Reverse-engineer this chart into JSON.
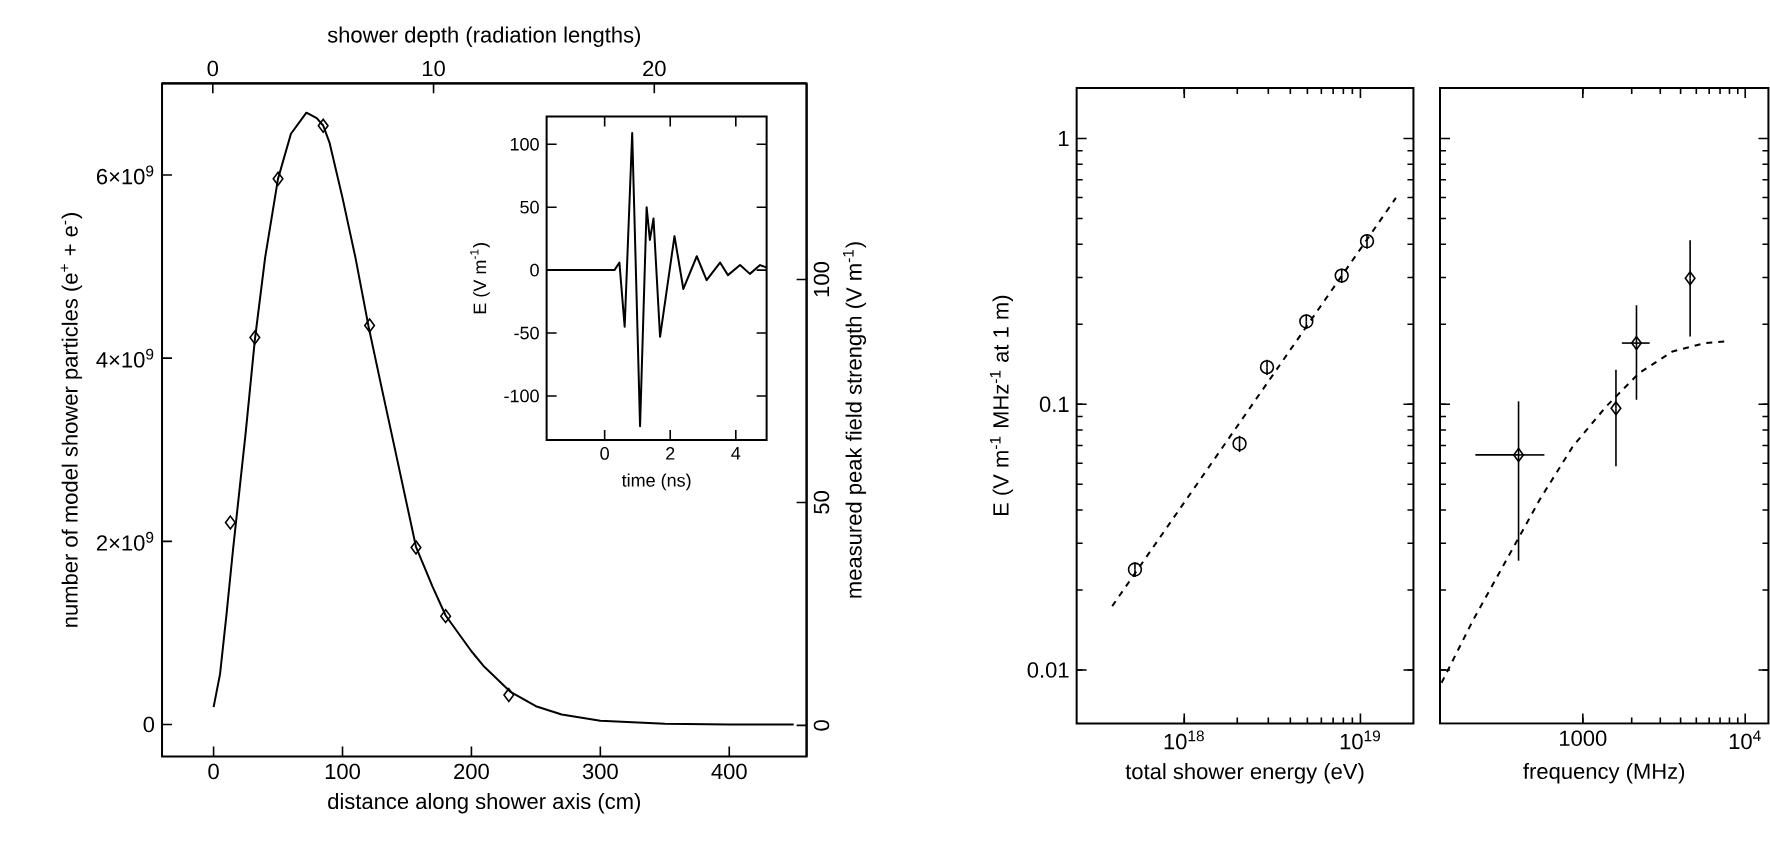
{
  "chart_data": [
    {
      "type": "line",
      "xlabel": "distance along shower axis (cm)",
      "ylabel": "number of model shower particles (e$^{+}$ + e$^{-}$)",
      "y2label": "measured peak field strength (V m$^{-1}$)",
      "x2label": "shower depth (radiation lengths)",
      "xlim": [
        -40,
        460
      ],
      "xticks": [
        0,
        100,
        200,
        300,
        400
      ],
      "ylim": [
        -350000000,
        7000000000
      ],
      "yticks": [
        0,
        {
          "value": 2000000000,
          "label": "2×10$^{9}$"
        },
        {
          "value": 4000000000,
          "label": "4×10$^{9}$"
        },
        {
          "value": 6000000000,
          "label": "6×10$^{9}$"
        }
      ],
      "y2lim": [
        -7,
        144
      ],
      "y2ticks": [
        0,
        50,
        100
      ],
      "x2lim": [
        -2.3,
        26.9
      ],
      "x2ticks": [
        0,
        10,
        20
      ],
      "series": [
        {
          "type": "line",
          "color": "#000000",
          "line_style": "solid",
          "marker": "none",
          "x": [
            0,
            5,
            10,
            15,
            20,
            25,
            32,
            40,
            50,
            60,
            72,
            80,
            85,
            90,
            100,
            110,
            120,
            130,
            140,
            157,
            170,
            180,
            200,
            210,
            230,
            250,
            270,
            300,
            350,
            400,
            450
          ],
          "values": [
            190000000,
            550000000,
            1200000000,
            1900000000,
            2550000000,
            3200000000,
            4200000000,
            5100000000,
            5960000000,
            6450000000,
            6680000000,
            6620000000,
            6540000000,
            6350000000,
            5750000000,
            5100000000,
            4360000000,
            3700000000,
            3050000000,
            1940000000,
            1500000000,
            1190000000,
            800000000,
            630000000,
            360000000,
            200000000,
            110000000,
            40000000,
            8000000,
            1000000,
            0
          ]
        },
        {
          "type": "scatter",
          "axis": "y2",
          "color": "#000000",
          "marker": "diamond",
          "x": [
            13,
            32,
            50,
            85,
            121,
            157,
            180,
            229
          ],
          "values": [
            45.5,
            87,
            122.6,
            134.5,
            89.7,
            39.9,
            24.5,
            6.8
          ]
        }
      ]
    },
    {
      "type": "line",
      "xlabel": "time (ns)",
      "ylabel": "E (V m$^{-1}$)",
      "xlim": [
        -1.77,
        4.94
      ],
      "xticks": [
        0,
        2,
        4
      ],
      "ylim": [
        -135,
        122
      ],
      "yticks": [
        -100,
        -50,
        0,
        50,
        100
      ],
      "series": [
        {
          "color": "#000000",
          "line_style": "solid",
          "marker": "none",
          "x": [
            -1.77,
            0.3,
            0.45,
            0.61,
            0.84,
            1.08,
            1.28,
            1.38,
            1.49,
            1.69,
            2.13,
            2.4,
            2.81,
            3.11,
            3.52,
            3.76,
            4.13,
            4.43,
            4.74,
            4.94
          ],
          "values": [
            0,
            0,
            6,
            -45,
            109,
            -124,
            50,
            24,
            41,
            -53,
            27,
            -15,
            11,
            -8,
            6,
            -4,
            4,
            -3,
            4,
            2
          ]
        }
      ]
    },
    {
      "type": "scatter",
      "log": "xy",
      "xlabel": "total shower energy (eV)",
      "ylabel": "E (V m$^{-1}$ MHz$^{-1}$ at 1 m)",
      "xlim": [
        2.45e+17,
        2e+19
      ],
      "xticks": [
        {
          "value": 1e+18,
          "label": "10$^{18}$"
        },
        {
          "value": 1e+19,
          "label": "10$^{19}$"
        }
      ],
      "ylim": [
        0.0063,
        1.55
      ],
      "yticks": [
        0.01,
        0.1,
        1
      ],
      "series": [
        {
          "type": "scatter",
          "color": "#000000",
          "marker": "circle",
          "x": [
            5.25e+17,
            2.06e+18,
            2.95e+18,
            4.93e+18,
            7.83e+18,
            1.09e+19
          ],
          "values": [
            0.0239,
            0.0711,
            0.138,
            0.205,
            0.305,
            0.411
          ],
          "errors": [
            0.0015,
            0.005,
            0.009,
            0.013,
            0.019,
            0.026
          ]
        },
        {
          "type": "line",
          "color": "#000000",
          "line_style": "dashed",
          "marker": "none",
          "x": [
            3.9e+17,
            1.59e+19
          ],
          "values": [
            0.0174,
            0.598
          ]
        }
      ]
    },
    {
      "type": "scatter",
      "log": "xy",
      "tick_labels": "x",
      "xlabel": "frequency (MHz)",
      "xlim": [
        132,
        13900
      ],
      "xticks": [
        1000,
        {
          "value": 10000,
          "label": "10$^{4}$"
        }
      ],
      "ylim": [
        0.0063,
        1.55
      ],
      "yticks": [
        0.01,
        0.1,
        1
      ],
      "series": [
        {
          "type": "scatter",
          "color": "#000000",
          "marker": "diamond",
          "x": [
            402,
            1600,
            2140,
            4580
          ],
          "values": [
            0.0645,
            0.0966,
            0.17,
            0.298
          ],
          "errors": [
            [
              0.0258,
              0.1026
            ],
            [
              0.0585,
              0.135
            ],
            [
              0.104,
              0.236
            ],
            [
              0.18,
              0.414
            ]
          ],
          "xerrors": [
            [
              218,
              580
            ],
            null,
            [
              1740,
              2580
            ],
            null
          ]
        },
        {
          "type": "line",
          "color": "#000000",
          "line_style": "dashed",
          "marker": "none",
          "x": [
            135,
            212,
            340,
            543,
            869,
            1390,
            2220,
            3560,
            5690,
            7900
          ],
          "values": [
            0.00896,
            0.0155,
            0.0261,
            0.0438,
            0.0695,
            0.098,
            0.131,
            0.158,
            0.17,
            0.173
          ]
        }
      ]
    }
  ]
}
